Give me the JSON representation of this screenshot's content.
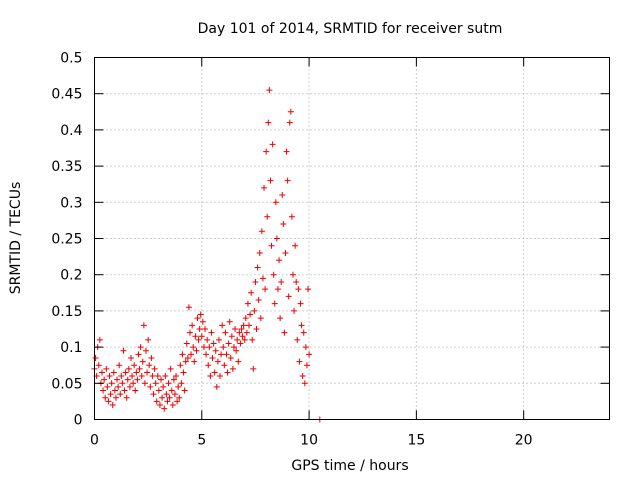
{
  "chart_data": {
    "type": "scatter",
    "title": "Day 101 of 2014, SRMTID for receiver sutm",
    "xlabel": "GPS time / hours",
    "ylabel": "SRMTID / TECUs",
    "xlim": [
      0,
      24
    ],
    "ylim": [
      0,
      0.5
    ],
    "xticks": [
      0,
      5,
      10,
      15,
      20
    ],
    "xtick_labels": [
      "0",
      "5",
      "10",
      "15",
      "20"
    ],
    "yticks": [
      0,
      0.05,
      0.1,
      0.15,
      0.2,
      0.25,
      0.3,
      0.35,
      0.4,
      0.45,
      0.5
    ],
    "ytick_labels": [
      "0",
      "0.05",
      "0.1",
      "0.15",
      "0.2",
      "0.25",
      "0.3",
      "0.35",
      "0.4",
      "0.45",
      "0.5"
    ],
    "grid": true,
    "marker": "plus",
    "color": "#ee0000",
    "series": [
      {
        "name": "SRMTID",
        "points": [
          [
            0.0,
            0.07
          ],
          [
            0.05,
            0.085
          ],
          [
            0.1,
            0.06
          ],
          [
            0.15,
            0.1
          ],
          [
            0.2,
            0.075
          ],
          [
            0.25,
            0.11
          ],
          [
            0.3,
            0.05
          ],
          [
            0.35,
            0.065
          ],
          [
            0.4,
            0.04
          ],
          [
            0.45,
            0.055
          ],
          [
            0.5,
            0.03
          ],
          [
            0.55,
            0.07
          ],
          [
            0.6,
            0.045
          ],
          [
            0.65,
            0.025
          ],
          [
            0.7,
            0.06
          ],
          [
            0.75,
            0.035
          ],
          [
            0.8,
            0.05
          ],
          [
            0.85,
            0.02
          ],
          [
            0.9,
            0.065
          ],
          [
            0.95,
            0.04
          ],
          [
            1.0,
            0.03
          ],
          [
            1.05,
            0.055
          ],
          [
            1.1,
            0.045
          ],
          [
            1.15,
            0.075
          ],
          [
            1.2,
            0.035
          ],
          [
            1.25,
            0.06
          ],
          [
            1.3,
            0.05
          ],
          [
            1.35,
            0.095
          ],
          [
            1.4,
            0.04
          ],
          [
            1.45,
            0.065
          ],
          [
            1.5,
            0.03
          ],
          [
            1.55,
            0.055
          ],
          [
            1.6,
            0.07
          ],
          [
            1.65,
            0.045
          ],
          [
            1.7,
            0.085
          ],
          [
            1.75,
            0.06
          ],
          [
            1.8,
            0.05
          ],
          [
            1.85,
            0.075
          ],
          [
            1.9,
            0.04
          ],
          [
            1.95,
            0.065
          ],
          [
            2.0,
            0.055
          ],
          [
            2.05,
            0.09
          ],
          [
            2.1,
            0.07
          ],
          [
            2.15,
            0.1
          ],
          [
            2.2,
            0.06
          ],
          [
            2.25,
            0.08
          ],
          [
            2.3,
            0.13
          ],
          [
            2.35,
            0.05
          ],
          [
            2.4,
            0.095
          ],
          [
            2.45,
            0.065
          ],
          [
            2.5,
            0.11
          ],
          [
            2.55,
            0.075
          ],
          [
            2.6,
            0.045
          ],
          [
            2.65,
            0.085
          ],
          [
            2.7,
            0.06
          ],
          [
            2.75,
            0.035
          ],
          [
            2.8,
            0.07
          ],
          [
            2.85,
            0.05
          ],
          [
            2.9,
            0.025
          ],
          [
            2.95,
            0.06
          ],
          [
            3.0,
            0.04
          ],
          [
            3.05,
            0.02
          ],
          [
            3.1,
            0.055
          ],
          [
            3.15,
            0.03
          ],
          [
            3.2,
            0.045
          ],
          [
            3.25,
            0.015
          ],
          [
            3.3,
            0.06
          ],
          [
            3.35,
            0.035
          ],
          [
            3.4,
            0.025
          ],
          [
            3.45,
            0.05
          ],
          [
            3.5,
            0.03
          ],
          [
            3.55,
            0.07
          ],
          [
            3.6,
            0.04
          ],
          [
            3.65,
            0.02
          ],
          [
            3.7,
            0.055
          ],
          [
            3.75,
            0.035
          ],
          [
            3.8,
            0.06
          ],
          [
            3.85,
            0.025
          ],
          [
            3.9,
            0.045
          ],
          [
            3.95,
            0.03
          ],
          [
            4.0,
            0.075
          ],
          [
            4.05,
            0.05
          ],
          [
            4.1,
            0.09
          ],
          [
            4.15,
            0.065
          ],
          [
            4.2,
            0.04
          ],
          [
            4.25,
            0.08
          ],
          [
            4.3,
            0.105
          ],
          [
            4.35,
            0.085
          ],
          [
            4.4,
            0.155
          ],
          [
            4.45,
            0.12
          ],
          [
            4.5,
            0.09
          ],
          [
            4.55,
            0.13
          ],
          [
            4.6,
            0.1
          ],
          [
            4.65,
            0.08
          ],
          [
            4.7,
            0.115
          ],
          [
            4.75,
            0.095
          ],
          [
            4.8,
            0.14
          ],
          [
            4.85,
            0.11
          ],
          [
            4.9,
            0.125
          ],
          [
            4.95,
            0.145
          ],
          [
            5.0,
            0.115
          ],
          [
            5.05,
            0.135
          ],
          [
            5.1,
            0.1
          ],
          [
            5.15,
            0.125
          ],
          [
            5.2,
            0.09
          ],
          [
            5.25,
            0.11
          ],
          [
            5.3,
            0.075
          ],
          [
            5.35,
            0.1
          ],
          [
            5.4,
            0.06
          ],
          [
            5.45,
            0.12
          ],
          [
            5.5,
            0.085
          ],
          [
            5.55,
            0.105
          ],
          [
            5.6,
            0.065
          ],
          [
            5.65,
            0.095
          ],
          [
            5.7,
            0.045
          ],
          [
            5.75,
            0.08
          ],
          [
            5.8,
            0.11
          ],
          [
            5.85,
            0.06
          ],
          [
            5.9,
            0.09
          ],
          [
            5.95,
            0.13
          ],
          [
            6.0,
            0.1
          ],
          [
            6.05,
            0.075
          ],
          [
            6.1,
            0.12
          ],
          [
            6.15,
            0.09
          ],
          [
            6.2,
            0.065
          ],
          [
            6.25,
            0.105
          ],
          [
            6.3,
            0.135
          ],
          [
            6.35,
            0.085
          ],
          [
            6.4,
            0.115
          ],
          [
            6.45,
            0.07
          ],
          [
            6.5,
            0.1
          ],
          [
            6.55,
            0.125
          ],
          [
            6.6,
            0.095
          ],
          [
            6.65,
            0.11
          ],
          [
            6.7,
            0.08
          ],
          [
            6.75,
            0.12
          ],
          [
            6.8,
            0.105
          ],
          [
            6.85,
            0.125
          ],
          [
            6.9,
            0.115
          ],
          [
            6.95,
            0.13
          ],
          [
            7.0,
            0.11
          ],
          [
            7.05,
            0.14
          ],
          [
            7.1,
            0.12
          ],
          [
            7.15,
            0.16
          ],
          [
            7.2,
            0.13
          ],
          [
            7.25,
            0.145
          ],
          [
            7.3,
            0.175
          ],
          [
            7.35,
            0.11
          ],
          [
            7.4,
            0.07
          ],
          [
            7.45,
            0.15
          ],
          [
            7.5,
            0.19
          ],
          [
            7.55,
            0.125
          ],
          [
            7.6,
            0.21
          ],
          [
            7.65,
            0.165
          ],
          [
            7.7,
            0.23
          ],
          [
            7.75,
            0.14
          ],
          [
            7.8,
            0.26
          ],
          [
            7.85,
            0.195
          ],
          [
            7.9,
            0.32
          ],
          [
            7.95,
            0.18
          ],
          [
            8.0,
            0.37
          ],
          [
            8.05,
            0.28
          ],
          [
            8.1,
            0.41
          ],
          [
            8.15,
            0.455
          ],
          [
            8.2,
            0.33
          ],
          [
            8.25,
            0.24
          ],
          [
            8.3,
            0.38
          ],
          [
            8.35,
            0.2
          ],
          [
            8.4,
            0.16
          ],
          [
            8.45,
            0.3
          ],
          [
            8.5,
            0.25
          ],
          [
            8.55,
            0.18
          ],
          [
            8.6,
            0.22
          ],
          [
            8.65,
            0.14
          ],
          [
            8.7,
            0.19
          ],
          [
            8.75,
            0.31
          ],
          [
            8.8,
            0.27
          ],
          [
            8.85,
            0.12
          ],
          [
            8.9,
            0.23
          ],
          [
            8.95,
            0.37
          ],
          [
            9.0,
            0.33
          ],
          [
            9.05,
            0.17
          ],
          [
            9.1,
            0.41
          ],
          [
            9.15,
            0.425
          ],
          [
            9.2,
            0.28
          ],
          [
            9.25,
            0.2
          ],
          [
            9.3,
            0.15
          ],
          [
            9.35,
            0.24
          ],
          [
            9.4,
            0.19
          ],
          [
            9.45,
            0.11
          ],
          [
            9.5,
            0.18
          ],
          [
            9.55,
            0.08
          ],
          [
            9.6,
            0.16
          ],
          [
            9.65,
            0.13
          ],
          [
            9.7,
            0.06
          ],
          [
            9.75,
            0.12
          ],
          [
            9.8,
            0.05
          ],
          [
            9.85,
            0.1
          ],
          [
            9.9,
            0.075
          ],
          [
            9.95,
            0.18
          ],
          [
            10.0,
            0.09
          ],
          [
            10.5,
            0.0
          ]
        ]
      }
    ]
  }
}
